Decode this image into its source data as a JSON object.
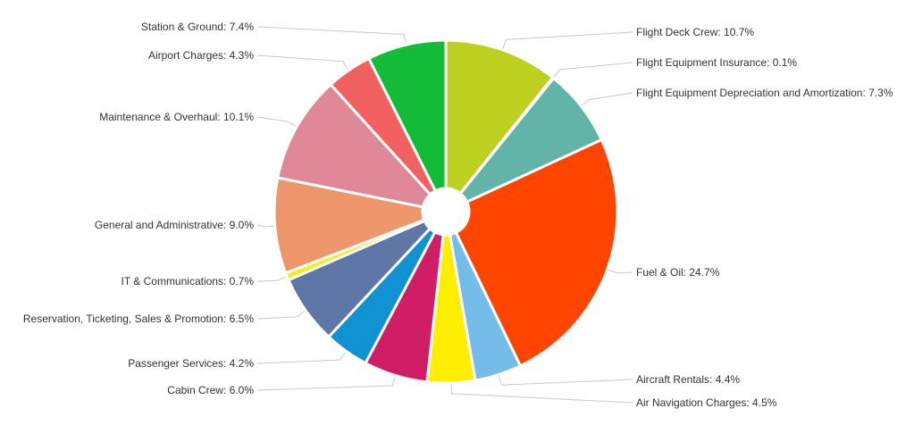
{
  "chart_data": {
    "type": "pie",
    "title": "",
    "donut_hole": true,
    "start_angle_deg": 0,
    "direction": "clockwise",
    "label_format": "{name}: {value}%",
    "slices": [
      {
        "name": "Flight Deck Crew",
        "value": 10.7,
        "color": "#bed120",
        "label": "Flight Deck Crew: 10.7%"
      },
      {
        "name": "Flight Equipment Insurance",
        "value": 0.1,
        "color": "#4bb0a0",
        "label": "Flight Equipment Insurance: 0.1%"
      },
      {
        "name": "Flight Equipment Depreciation and Amortization",
        "value": 7.3,
        "color": "#62b3a8",
        "label": "Flight Equipment Depreciation and Amortization: 7.3%"
      },
      {
        "name": "Fuel & Oil",
        "value": 24.7,
        "color": "#ff4500",
        "label": "Fuel & Oil: 24.7%"
      },
      {
        "name": "Aircraft Rentals",
        "value": 4.4,
        "color": "#74bde8",
        "label": "Aircraft Rentals: 4.4%"
      },
      {
        "name": "Air Navigation Charges",
        "value": 4.5,
        "color": "#ffee00",
        "label": "Air Navigation Charges: 4.5%"
      },
      {
        "name": "Cabin Crew",
        "value": 6.0,
        "color": "#d01d66",
        "label": "Cabin Crew: 6.0%"
      },
      {
        "name": "Passenger Services",
        "value": 4.2,
        "color": "#0f91d2",
        "label": "Passenger Services: 4.2%"
      },
      {
        "name": "Reservation, Ticketing, Sales & Promotion",
        "value": 6.5,
        "color": "#5f77a6",
        "label": "Reservation, Ticketing, Sales & Promotion: 6.5%"
      },
      {
        "name": "IT & Communications",
        "value": 0.7,
        "color": "#f3ef1e",
        "label": "IT & Communications: 0.7%"
      },
      {
        "name": "General and Administrative",
        "value": 9.0,
        "color": "#ef976c",
        "label": "General and Administrative: 9.0%"
      },
      {
        "name": "Maintenance & Overhaul",
        "value": 10.1,
        "color": "#df8898",
        "label": "Maintenance & Overhaul: 10.1%"
      },
      {
        "name": "Airport Charges",
        "value": 4.3,
        "color": "#f26161",
        "label": "Airport Charges: 4.3%"
      },
      {
        "name": "Station & Ground",
        "value": 7.4,
        "color": "#12bb38",
        "label": "Station & Ground: 7.4%"
      }
    ]
  }
}
